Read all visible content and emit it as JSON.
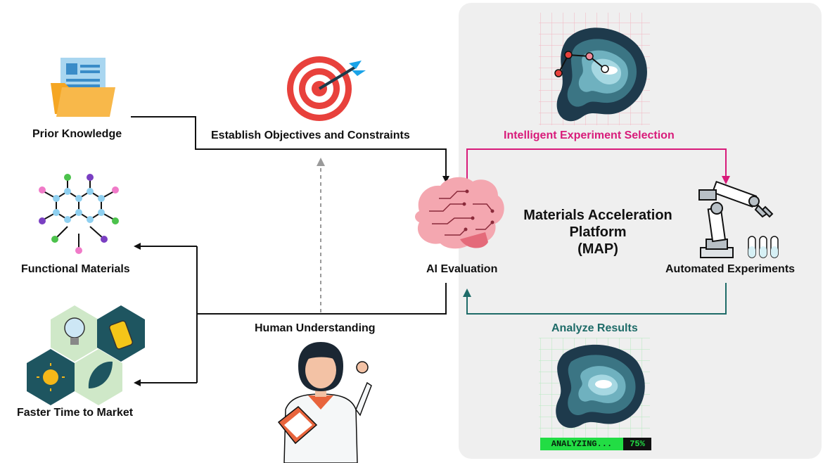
{
  "labels": {
    "prior_knowledge": "Prior Knowledge",
    "objectives": "Establish Objectives and Constraints",
    "intelligent_selection": "Intelligent Experiment Selection",
    "functional_materials": "Functional Materials",
    "ai_evaluation": "AI Evaluation",
    "automated_experiments": "Automated Experiments",
    "human_understanding": "Human Understanding",
    "analyze_results": "Analyze Results",
    "faster_time": "Faster Time to Market"
  },
  "platform": {
    "line1": "Materials Acceleration",
    "line2": "Platform",
    "line3": "(MAP)"
  },
  "progress": {
    "text": "ANALYZING...",
    "percent": "75%"
  },
  "colors": {
    "selection": "#d81b7a",
    "analyze": "#1e6b68",
    "flow": "#111111",
    "dashed": "#8a8a8a",
    "panel": "#efefef"
  },
  "icons": [
    "document-folder-icon",
    "target-icon",
    "molecule-icon",
    "brain-icon",
    "robot-arm-icon",
    "test-tubes-icon",
    "hexagon-tiles-icon",
    "scientist-icon",
    "landscape-map-icon"
  ]
}
